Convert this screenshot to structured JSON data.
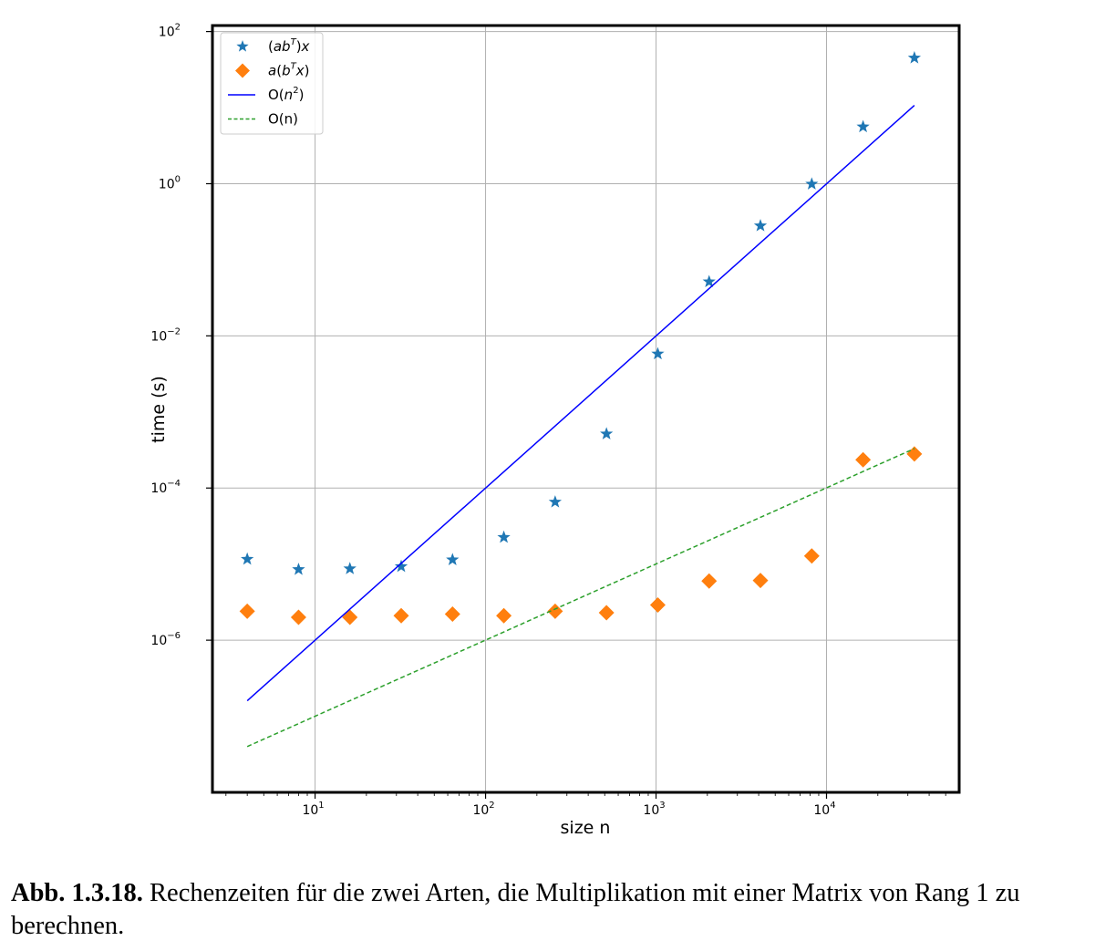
{
  "caption": {
    "label": "Abb. 1.3.18.",
    "text": "Rechenzeiten für die zwei Arten, die Multiplikation mit einer Matrix von Rang 1 zu berechnen."
  },
  "colors": {
    "star": "#1f77b4",
    "diamond": "#ff7f0e",
    "quadratic": "#0000ff",
    "linear": "#2ca02c"
  },
  "chart_data": {
    "type": "scatter",
    "xscale": "log",
    "yscale": "log",
    "xlabel": "size n",
    "ylabel": "time (s)",
    "xlim": [
      2.5,
      60000
    ],
    "ylim": [
      1e-08,
      120
    ],
    "grid": true,
    "x_ticks": [
      {
        "value": 10,
        "base": "10",
        "exp": "1"
      },
      {
        "value": 100,
        "base": "10",
        "exp": "2"
      },
      {
        "value": 1000,
        "base": "10",
        "exp": "3"
      },
      {
        "value": 10000,
        "base": "10",
        "exp": "4"
      }
    ],
    "y_ticks": [
      {
        "value": 100,
        "base": "10",
        "exp": "2"
      },
      {
        "value": 1,
        "base": "10",
        "exp": "0"
      },
      {
        "value": 0.01,
        "base": "10",
        "exp": "−2"
      },
      {
        "value": 0.0001,
        "base": "10",
        "exp": "−4"
      },
      {
        "value": 1e-06,
        "base": "10",
        "exp": "−6"
      }
    ],
    "legend_position": "top-left",
    "series": [
      {
        "name": "(abT)x",
        "legend_parts": [
          "(",
          "ab",
          "T",
          ")",
          "x"
        ],
        "kind": "marker-star",
        "x": [
          4,
          8,
          16,
          32,
          64,
          128,
          256,
          512,
          1024,
          2048,
          4096,
          8192,
          16384,
          32768
        ],
        "y": [
          1.16e-05,
          8.5e-06,
          8.7e-06,
          9.3e-06,
          1.14e-05,
          2.25e-05,
          6.55e-05,
          0.000515,
          0.0058,
          0.0515,
          0.28,
          0.99,
          5.6,
          45
        ]
      },
      {
        "name": "a(bTx)",
        "legend_parts": [
          "a",
          "(",
          "b",
          "T",
          "x",
          ")"
        ],
        "kind": "marker-diamond",
        "x": [
          4,
          8,
          16,
          32,
          64,
          128,
          256,
          512,
          1024,
          2048,
          4096,
          8192,
          16384,
          32768
        ],
        "y": [
          2.4e-06,
          2e-06,
          2e-06,
          2.1e-06,
          2.2e-06,
          2.1e-06,
          2.4e-06,
          2.3e-06,
          2.9e-06,
          6e-06,
          6.1e-06,
          1.28e-05,
          0.000235,
          0.00028
        ]
      },
      {
        "name": "O(n2)",
        "legend_parts": [
          "O(",
          "n",
          "2",
          ")"
        ],
        "kind": "line-solid",
        "x": [
          4,
          32768
        ],
        "y": [
          1.6e-07,
          10.7
        ]
      },
      {
        "name": "O(n)",
        "legend_parts": [
          "O(n)"
        ],
        "kind": "line-dashed",
        "x": [
          4,
          32768
        ],
        "y": [
          4e-08,
          0.00033
        ]
      }
    ]
  }
}
